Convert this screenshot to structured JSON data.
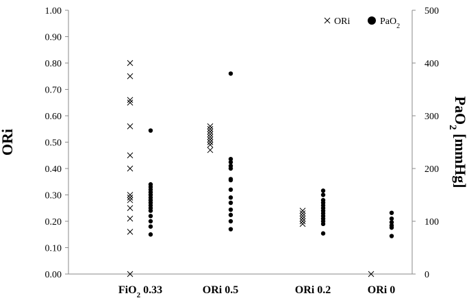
{
  "chart_data": {
    "type": "scatter",
    "categories": [
      {
        "main": "FiO",
        "sub": "2",
        "rest": " 0.33"
      },
      {
        "main": "ORi 0.5",
        "sub": "",
        "rest": ""
      },
      {
        "main": "ORi 0.2",
        "sub": "",
        "rest": ""
      },
      {
        "main": "ORi 0",
        "sub": "",
        "rest": ""
      }
    ],
    "ylabel_left": "ORi",
    "ylabel_right": {
      "main": "PaO",
      "sub": "2",
      "rest": " [mmHg]"
    },
    "ylim_left": [
      0,
      1
    ],
    "ylim_right": [
      0,
      500
    ],
    "yticks_left": [
      "0.00",
      "0.10",
      "0.20",
      "0.30",
      "0.40",
      "0.50",
      "0.60",
      "0.70",
      "0.80",
      "0.90",
      "1.00"
    ],
    "yticks_right": [
      "0",
      "100",
      "200",
      "300",
      "400",
      "500"
    ],
    "legend_position": "top-right",
    "grid": false,
    "series": [
      {
        "name": "ORi",
        "marker": "x",
        "axis": "left",
        "points": [
          [
            0,
            0.8
          ],
          [
            0,
            0.75
          ],
          [
            0,
            0.66
          ],
          [
            0,
            0.65
          ],
          [
            0,
            0.56
          ],
          [
            0,
            0.45
          ],
          [
            0,
            0.4
          ],
          [
            0,
            0.3
          ],
          [
            0,
            0.29
          ],
          [
            0,
            0.28
          ],
          [
            0,
            0.25
          ],
          [
            0,
            0.21
          ],
          [
            0,
            0.16
          ],
          [
            0,
            0.0
          ],
          [
            1,
            0.56
          ],
          [
            1,
            0.55
          ],
          [
            1,
            0.54
          ],
          [
            1,
            0.53
          ],
          [
            1,
            0.52
          ],
          [
            1,
            0.51
          ],
          [
            1,
            0.5
          ],
          [
            1,
            0.49
          ],
          [
            1,
            0.47
          ],
          [
            2,
            0.24
          ],
          [
            2,
            0.23
          ],
          [
            2,
            0.22
          ],
          [
            2,
            0.21
          ],
          [
            2,
            0.2
          ],
          [
            2,
            0.19
          ],
          [
            3,
            0.0
          ]
        ]
      },
      {
        "name": "PaO",
        "name_sub": "2",
        "marker": "dot",
        "axis": "right",
        "points": [
          [
            0,
            272
          ],
          [
            0,
            170
          ],
          [
            0,
            165
          ],
          [
            0,
            160
          ],
          [
            0,
            155
          ],
          [
            0,
            150
          ],
          [
            0,
            145
          ],
          [
            0,
            140
          ],
          [
            0,
            135
          ],
          [
            0,
            130
          ],
          [
            0,
            125
          ],
          [
            0,
            120
          ],
          [
            0,
            110
          ],
          [
            0,
            100
          ],
          [
            0,
            90
          ],
          [
            0,
            75
          ],
          [
            1,
            380
          ],
          [
            1,
            218
          ],
          [
            1,
            212
          ],
          [
            1,
            205
          ],
          [
            1,
            200
          ],
          [
            1,
            180
          ],
          [
            1,
            178
          ],
          [
            1,
            160
          ],
          [
            1,
            145
          ],
          [
            1,
            135
          ],
          [
            1,
            122
          ],
          [
            1,
            112
          ],
          [
            1,
            100
          ],
          [
            1,
            85
          ],
          [
            2,
            158
          ],
          [
            2,
            150
          ],
          [
            2,
            140
          ],
          [
            2,
            135
          ],
          [
            2,
            130
          ],
          [
            2,
            125
          ],
          [
            2,
            120
          ],
          [
            2,
            115
          ],
          [
            2,
            110
          ],
          [
            2,
            105
          ],
          [
            2,
            100
          ],
          [
            2,
            95
          ],
          [
            2,
            77
          ],
          [
            3,
            116
          ],
          [
            3,
            105
          ],
          [
            3,
            98
          ],
          [
            3,
            92
          ],
          [
            3,
            88
          ],
          [
            3,
            72
          ]
        ]
      }
    ]
  }
}
